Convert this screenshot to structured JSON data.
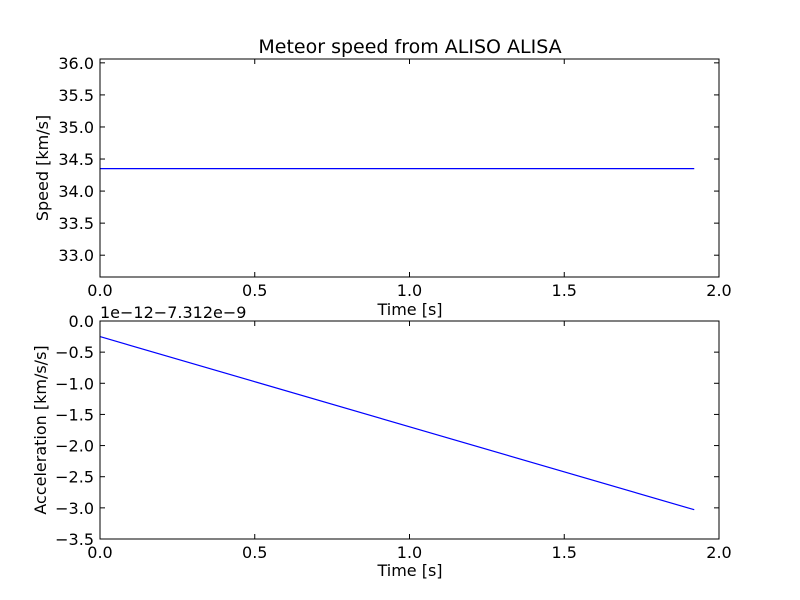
{
  "figure": {
    "title": "Meteor speed from  ALISO ALISA"
  },
  "chart_data": [
    {
      "type": "line",
      "title": "Meteor speed from  ALISO ALISA",
      "xlabel": "Time [s]",
      "ylabel": "Speed [km/s]",
      "xlim": [
        0.0,
        2.0
      ],
      "ylim": [
        32.66,
        36.06
      ],
      "xticks": [
        "0.0",
        "0.5",
        "1.0",
        "1.5",
        "2.0"
      ],
      "xtick_values": [
        0.0,
        0.5,
        1.0,
        1.5,
        2.0
      ],
      "yticks": [
        "33.0",
        "33.5",
        "34.0",
        "34.5",
        "35.0",
        "35.5",
        "36.0"
      ],
      "ytick_values": [
        33.0,
        33.5,
        34.0,
        34.5,
        35.0,
        35.5,
        36.0
      ],
      "grid": false,
      "series": [
        {
          "color": "#0000ff",
          "x": [
            0.0,
            1.92
          ],
          "y": [
            34.35,
            34.35
          ]
        }
      ]
    },
    {
      "type": "line",
      "xlabel": "Time [s]",
      "ylabel": "Acceleration [km/s/s]",
      "offset_text": "1e−12−7.312e−9",
      "xlim": [
        0.0,
        2.0
      ],
      "ylim": [
        -3.5,
        0.0
      ],
      "xticks": [
        "0.0",
        "0.5",
        "1.0",
        "1.5",
        "2.0"
      ],
      "xtick_values": [
        0.0,
        0.5,
        1.0,
        1.5,
        2.0
      ],
      "yticks": [
        "0.0",
        "−0.5",
        "−1.0",
        "−1.5",
        "−2.0",
        "−2.5",
        "−3.0",
        "−3.5"
      ],
      "ytick_values": [
        0.0,
        -0.5,
        -1.0,
        -1.5,
        -2.0,
        -2.5,
        -3.0,
        -3.5
      ],
      "grid": false,
      "series": [
        {
          "color": "#0000ff",
          "x": [
            0.0,
            1.92
          ],
          "y": [
            -0.25,
            -3.03
          ]
        }
      ]
    }
  ]
}
